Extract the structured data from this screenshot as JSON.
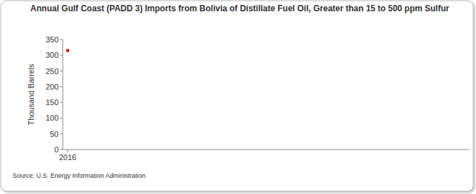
{
  "chart_data": {
    "type": "line",
    "title": "Annual Gulf Coast (PADD 3) Imports from Bolivia of Distillate Fuel Oil, Greater than 15 to 500 ppm Sulfur",
    "y_label": "Thousand Barrels",
    "source": "Source: U.S. Energy Information Administration",
    "categories": [
      "2016"
    ],
    "values": [
      315
    ],
    "color": "#cc0000",
    "marker": "square",
    "ylim": [
      0,
      350
    ],
    "yticks": [
      0,
      50,
      100,
      150,
      200,
      250,
      300,
      350
    ],
    "grid": false
  }
}
